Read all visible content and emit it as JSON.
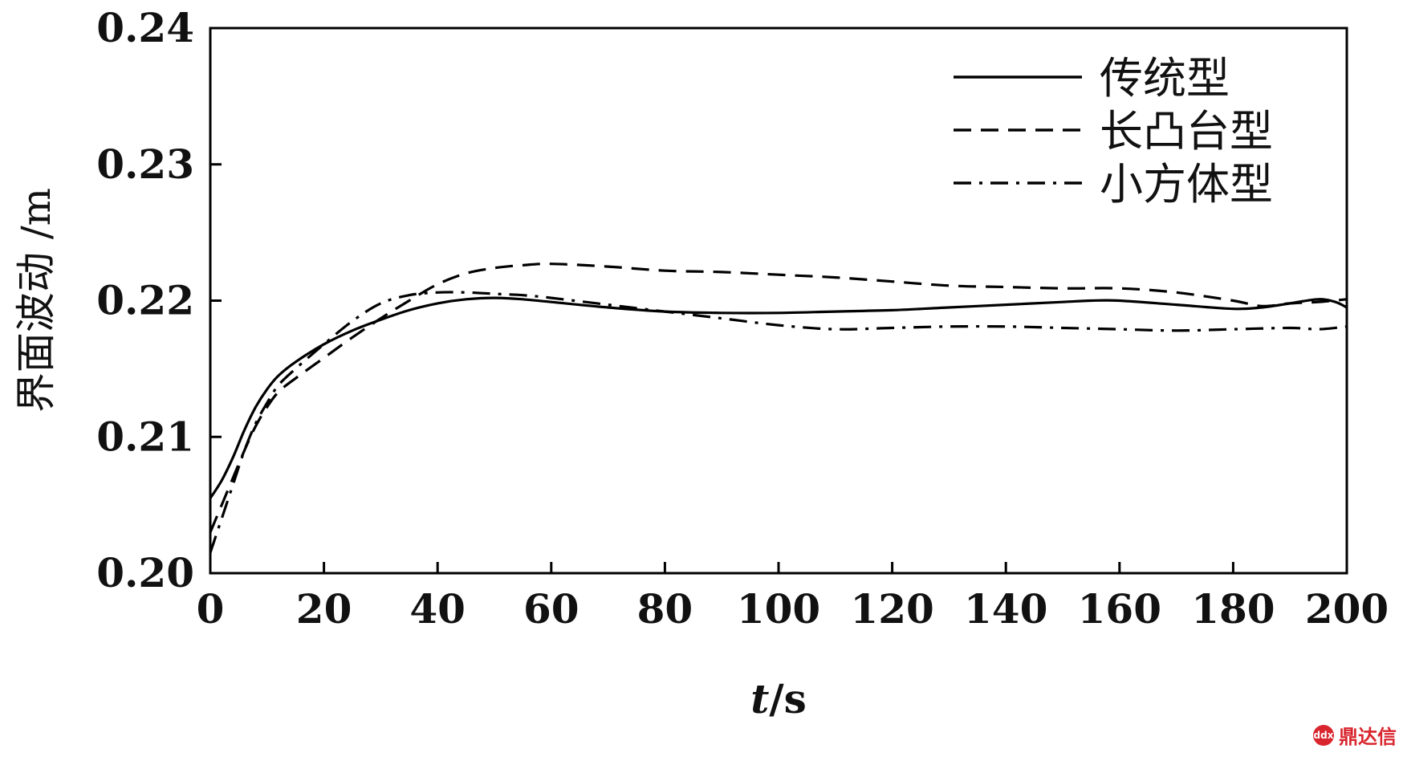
{
  "chart_data": {
    "type": "line",
    "xlabel": "t/s",
    "ylabel": "界面波动 /m",
    "xlim": [
      0,
      200
    ],
    "ylim": [
      0.2,
      0.24
    ],
    "xticks": [
      0,
      20,
      40,
      60,
      80,
      100,
      120,
      140,
      160,
      180,
      200
    ],
    "yticks": [
      "0.20",
      "0.21",
      "0.22",
      "0.23",
      "0.24"
    ],
    "grid": false,
    "legend_position": "top-right",
    "series": [
      {
        "name": "传统型",
        "style": "solid",
        "color": "#000000",
        "points": [
          [
            0,
            0.2055
          ],
          [
            2,
            0.2068
          ],
          [
            4,
            0.2085
          ],
          [
            6,
            0.2105
          ],
          [
            8,
            0.2122
          ],
          [
            10,
            0.2135
          ],
          [
            12,
            0.2145
          ],
          [
            15,
            0.2155
          ],
          [
            20,
            0.2168
          ],
          [
            25,
            0.2178
          ],
          [
            30,
            0.2186
          ],
          [
            35,
            0.2193
          ],
          [
            40,
            0.2198
          ],
          [
            45,
            0.2201
          ],
          [
            50,
            0.2202
          ],
          [
            55,
            0.2201
          ],
          [
            60,
            0.2199
          ],
          [
            70,
            0.2195
          ],
          [
            80,
            0.2192
          ],
          [
            90,
            0.2191
          ],
          [
            100,
            0.2191
          ],
          [
            110,
            0.2192
          ],
          [
            120,
            0.2193
          ],
          [
            130,
            0.2195
          ],
          [
            140,
            0.2197
          ],
          [
            150,
            0.2199
          ],
          [
            155,
            0.22
          ],
          [
            160,
            0.22
          ],
          [
            170,
            0.2197
          ],
          [
            180,
            0.2194
          ],
          [
            185,
            0.2195
          ],
          [
            190,
            0.2198
          ],
          [
            195,
            0.2201
          ],
          [
            198,
            0.2199
          ],
          [
            200,
            0.2195
          ]
        ]
      },
      {
        "name": "长凸台型",
        "style": "dashed",
        "color": "#000000",
        "points": [
          [
            0,
            0.203
          ],
          [
            2,
            0.205
          ],
          [
            4,
            0.207
          ],
          [
            6,
            0.209
          ],
          [
            8,
            0.2108
          ],
          [
            10,
            0.2122
          ],
          [
            12,
            0.2133
          ],
          [
            15,
            0.2143
          ],
          [
            20,
            0.2158
          ],
          [
            25,
            0.2173
          ],
          [
            30,
            0.2187
          ],
          [
            35,
            0.22
          ],
          [
            40,
            0.2212
          ],
          [
            45,
            0.222
          ],
          [
            50,
            0.2224
          ],
          [
            55,
            0.2226
          ],
          [
            60,
            0.2227
          ],
          [
            70,
            0.2225
          ],
          [
            80,
            0.2222
          ],
          [
            90,
            0.2221
          ],
          [
            100,
            0.2219
          ],
          [
            110,
            0.2217
          ],
          [
            120,
            0.2214
          ],
          [
            130,
            0.2211
          ],
          [
            140,
            0.221
          ],
          [
            150,
            0.2209
          ],
          [
            160,
            0.2209
          ],
          [
            170,
            0.2206
          ],
          [
            180,
            0.22
          ],
          [
            185,
            0.2196
          ],
          [
            190,
            0.2198
          ],
          [
            195,
            0.2199
          ],
          [
            200,
            0.2201
          ]
        ]
      },
      {
        "name": "小方体型",
        "style": "dash-dot",
        "color": "#000000",
        "points": [
          [
            0,
            0.2015
          ],
          [
            2,
            0.204
          ],
          [
            4,
            0.2065
          ],
          [
            6,
            0.209
          ],
          [
            8,
            0.211
          ],
          [
            10,
            0.2125
          ],
          [
            12,
            0.2138
          ],
          [
            15,
            0.215
          ],
          [
            20,
            0.2168
          ],
          [
            25,
            0.2185
          ],
          [
            30,
            0.2198
          ],
          [
            35,
            0.2204
          ],
          [
            40,
            0.2206
          ],
          [
            45,
            0.2206
          ],
          [
            50,
            0.2205
          ],
          [
            55,
            0.2204
          ],
          [
            60,
            0.2202
          ],
          [
            70,
            0.2197
          ],
          [
            80,
            0.2192
          ],
          [
            90,
            0.2187
          ],
          [
            100,
            0.2182
          ],
          [
            110,
            0.2179
          ],
          [
            120,
            0.218
          ],
          [
            130,
            0.2181
          ],
          [
            140,
            0.2181
          ],
          [
            150,
            0.218
          ],
          [
            160,
            0.2179
          ],
          [
            170,
            0.2178
          ],
          [
            180,
            0.2179
          ],
          [
            190,
            0.218
          ],
          [
            195,
            0.2179
          ],
          [
            200,
            0.2181
          ]
        ]
      }
    ]
  },
  "watermark": {
    "icon": "dingdaxin-logo-icon",
    "logo_text": "ddx",
    "text": "鼎达信"
  }
}
